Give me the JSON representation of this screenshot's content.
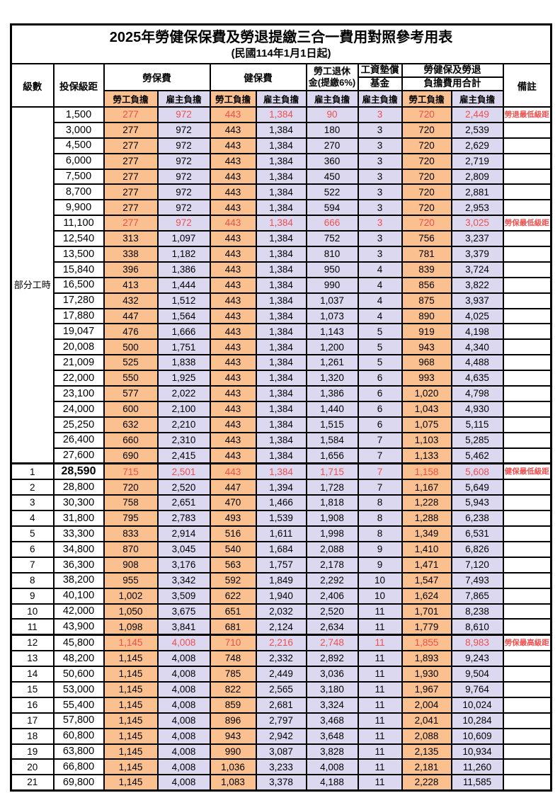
{
  "title": "2025年勞健保保費及勞退提繳三合一費用對照參考用表",
  "subtitle": "(民國114年1月1日起)",
  "colors": {
    "employee_bg": "#FAC090",
    "employer_bg": "#DCD8F0",
    "highlight_text": "#F04F4F",
    "border": "#000000"
  },
  "header": {
    "level": "級數",
    "bracket": "投保級距",
    "labor_insurance": "勞保費",
    "health_insurance": "健保費",
    "pension_line1": "勞工退休",
    "pension_line2": "金(提繳6%)",
    "wage_fund_line1": "工資墊償",
    "wage_fund_line2": "基金",
    "total_line1": "勞健保及勞退",
    "total_line2": "負擔費用合計",
    "remark": "備註",
    "employee": "勞工負擔",
    "employer": "雇主負擔"
  },
  "fee_column_styles": [
    "employee",
    "employer",
    "employee",
    "employer",
    "employer",
    "employer",
    "employee",
    "employer"
  ],
  "part_time_label": "部分工時",
  "rows": [
    {
      "level": "部分工時",
      "level_rowspan": 23,
      "bracket": "1,500",
      "fees": [
        "277",
        "972",
        "443",
        "1,384",
        "90",
        "3",
        "720",
        "2,449"
      ],
      "remark": "勞退最低級距",
      "red": true
    },
    {
      "bracket": "3,000",
      "fees": [
        "277",
        "972",
        "443",
        "1,384",
        "180",
        "3",
        "720",
        "2,539"
      ],
      "remark": ""
    },
    {
      "bracket": "4,500",
      "fees": [
        "277",
        "972",
        "443",
        "1,384",
        "270",
        "3",
        "720",
        "2,629"
      ],
      "remark": ""
    },
    {
      "bracket": "6,000",
      "fees": [
        "277",
        "972",
        "443",
        "1,384",
        "360",
        "3",
        "720",
        "2,719"
      ],
      "remark": ""
    },
    {
      "bracket": "7,500",
      "fees": [
        "277",
        "972",
        "443",
        "1,384",
        "450",
        "3",
        "720",
        "2,809"
      ],
      "remark": ""
    },
    {
      "bracket": "8,700",
      "fees": [
        "277",
        "972",
        "443",
        "1,384",
        "522",
        "3",
        "720",
        "2,881"
      ],
      "remark": ""
    },
    {
      "bracket": "9,900",
      "fees": [
        "277",
        "972",
        "443",
        "1,384",
        "594",
        "3",
        "720",
        "2,953"
      ],
      "remark": ""
    },
    {
      "bracket": "11,100",
      "fees": [
        "277",
        "972",
        "443",
        "1,384",
        "666",
        "3",
        "720",
        "3,025"
      ],
      "remark": "勞保最低級距",
      "red": true
    },
    {
      "bracket": "12,540",
      "fees": [
        "313",
        "1,097",
        "443",
        "1,384",
        "752",
        "3",
        "756",
        "3,237"
      ],
      "remark": ""
    },
    {
      "bracket": "13,500",
      "fees": [
        "338",
        "1,182",
        "443",
        "1,384",
        "810",
        "3",
        "781",
        "3,379"
      ],
      "remark": ""
    },
    {
      "bracket": "15,840",
      "fees": [
        "396",
        "1,386",
        "443",
        "1,384",
        "950",
        "4",
        "839",
        "3,724"
      ],
      "remark": ""
    },
    {
      "bracket": "16,500",
      "fees": [
        "413",
        "1,444",
        "443",
        "1,384",
        "990",
        "4",
        "856",
        "3,822"
      ],
      "remark": ""
    },
    {
      "bracket": "17,280",
      "fees": [
        "432",
        "1,512",
        "443",
        "1,384",
        "1,037",
        "4",
        "875",
        "3,937"
      ],
      "remark": ""
    },
    {
      "bracket": "17,880",
      "fees": [
        "447",
        "1,564",
        "443",
        "1,384",
        "1,073",
        "4",
        "890",
        "4,025"
      ],
      "remark": ""
    },
    {
      "bracket": "19,047",
      "fees": [
        "476",
        "1,666",
        "443",
        "1,384",
        "1,143",
        "5",
        "919",
        "4,198"
      ],
      "remark": ""
    },
    {
      "bracket": "20,008",
      "fees": [
        "500",
        "1,751",
        "443",
        "1,384",
        "1,200",
        "5",
        "943",
        "4,340"
      ],
      "remark": ""
    },
    {
      "bracket": "21,009",
      "fees": [
        "525",
        "1,838",
        "443",
        "1,384",
        "1,261",
        "5",
        "968",
        "4,488"
      ],
      "remark": ""
    },
    {
      "bracket": "22,000",
      "fees": [
        "550",
        "1,925",
        "443",
        "1,384",
        "1,320",
        "6",
        "993",
        "4,635"
      ],
      "remark": ""
    },
    {
      "bracket": "23,100",
      "fees": [
        "577",
        "2,022",
        "443",
        "1,384",
        "1,386",
        "6",
        "1,020",
        "4,798"
      ],
      "remark": ""
    },
    {
      "bracket": "24,000",
      "fees": [
        "600",
        "2,100",
        "443",
        "1,384",
        "1,440",
        "6",
        "1,043",
        "4,930"
      ],
      "remark": ""
    },
    {
      "bracket": "25,250",
      "fees": [
        "632",
        "2,210",
        "443",
        "1,384",
        "1,515",
        "6",
        "1,075",
        "5,115"
      ],
      "remark": ""
    },
    {
      "bracket": "26,400",
      "fees": [
        "660",
        "2,310",
        "443",
        "1,384",
        "1,584",
        "7",
        "1,103",
        "5,285"
      ],
      "remark": ""
    },
    {
      "bracket": "27,600",
      "fees": [
        "690",
        "2,415",
        "443",
        "1,384",
        "1,656",
        "7",
        "1,133",
        "5,462"
      ],
      "remark": ""
    },
    {
      "level": "1",
      "bracket": "28,590",
      "fees": [
        "715",
        "2,501",
        "443",
        "1,384",
        "1,715",
        "7",
        "1,158",
        "5,608"
      ],
      "remark": "健保最低級距",
      "red": true,
      "thick_top": true,
      "bracket_bold": true
    },
    {
      "level": "2",
      "bracket": "28,800",
      "fees": [
        "720",
        "2,520",
        "447",
        "1,394",
        "1,728",
        "7",
        "1,167",
        "5,649"
      ],
      "remark": ""
    },
    {
      "level": "3",
      "bracket": "30,300",
      "fees": [
        "758",
        "2,651",
        "470",
        "1,466",
        "1,818",
        "8",
        "1,228",
        "5,943"
      ],
      "remark": ""
    },
    {
      "level": "4",
      "bracket": "31,800",
      "fees": [
        "795",
        "2,783",
        "493",
        "1,539",
        "1,908",
        "8",
        "1,288",
        "6,238"
      ],
      "remark": ""
    },
    {
      "level": "5",
      "bracket": "33,300",
      "fees": [
        "833",
        "2,914",
        "516",
        "1,611",
        "1,998",
        "8",
        "1,349",
        "6,531"
      ],
      "remark": ""
    },
    {
      "level": "6",
      "bracket": "34,800",
      "fees": [
        "870",
        "3,045",
        "540",
        "1,684",
        "2,088",
        "9",
        "1,410",
        "6,826"
      ],
      "remark": ""
    },
    {
      "level": "7",
      "bracket": "36,300",
      "fees": [
        "908",
        "3,176",
        "563",
        "1,757",
        "2,178",
        "9",
        "1,471",
        "7,120"
      ],
      "remark": ""
    },
    {
      "level": "8",
      "bracket": "38,200",
      "fees": [
        "955",
        "3,342",
        "592",
        "1,849",
        "2,292",
        "10",
        "1,547",
        "7,493"
      ],
      "remark": ""
    },
    {
      "level": "9",
      "bracket": "40,100",
      "fees": [
        "1,002",
        "3,509",
        "622",
        "1,940",
        "2,406",
        "10",
        "1,624",
        "7,865"
      ],
      "remark": ""
    },
    {
      "level": "10",
      "bracket": "42,000",
      "fees": [
        "1,050",
        "3,675",
        "651",
        "2,032",
        "2,520",
        "11",
        "1,701",
        "8,238"
      ],
      "remark": ""
    },
    {
      "level": "11",
      "bracket": "43,900",
      "fees": [
        "1,098",
        "3,841",
        "681",
        "2,124",
        "2,634",
        "11",
        "1,779",
        "8,610"
      ],
      "remark": ""
    },
    {
      "level": "12",
      "bracket": "45,800",
      "fees": [
        "1,145",
        "4,008",
        "710",
        "2,216",
        "2,748",
        "11",
        "1,855",
        "8,983"
      ],
      "remark": "勞保最高級距",
      "red": true,
      "thick_top": true
    },
    {
      "level": "13",
      "bracket": "48,200",
      "fees": [
        "1,145",
        "4,008",
        "748",
        "2,332",
        "2,892",
        "11",
        "1,893",
        "9,243"
      ],
      "remark": ""
    },
    {
      "level": "14",
      "bracket": "50,600",
      "fees": [
        "1,145",
        "4,008",
        "785",
        "2,449",
        "3,036",
        "11",
        "1,930",
        "9,504"
      ],
      "remark": ""
    },
    {
      "level": "15",
      "bracket": "53,000",
      "fees": [
        "1,145",
        "4,008",
        "822",
        "2,565",
        "3,180",
        "11",
        "1,967",
        "9,764"
      ],
      "remark": ""
    },
    {
      "level": "16",
      "bracket": "55,400",
      "fees": [
        "1,145",
        "4,008",
        "859",
        "2,681",
        "3,324",
        "11",
        "2,004",
        "10,024"
      ],
      "remark": ""
    },
    {
      "level": "17",
      "bracket": "57,800",
      "fees": [
        "1,145",
        "4,008",
        "896",
        "2,797",
        "3,468",
        "11",
        "2,041",
        "10,284"
      ],
      "remark": ""
    },
    {
      "level": "18",
      "bracket": "60,800",
      "fees": [
        "1,145",
        "4,008",
        "943",
        "2,942",
        "3,648",
        "11",
        "2,088",
        "10,609"
      ],
      "remark": ""
    },
    {
      "level": "19",
      "bracket": "63,800",
      "fees": [
        "1,145",
        "4,008",
        "990",
        "3,087",
        "3,828",
        "11",
        "2,135",
        "10,934"
      ],
      "remark": ""
    },
    {
      "level": "20",
      "bracket": "66,800",
      "fees": [
        "1,145",
        "4,008",
        "1,036",
        "3,233",
        "4,008",
        "11",
        "2,181",
        "11,260"
      ],
      "remark": ""
    },
    {
      "level": "21",
      "bracket": "69,800",
      "fees": [
        "1,145",
        "4,008",
        "1,083",
        "3,378",
        "4,188",
        "11",
        "2,228",
        "11,585"
      ],
      "remark": ""
    }
  ]
}
